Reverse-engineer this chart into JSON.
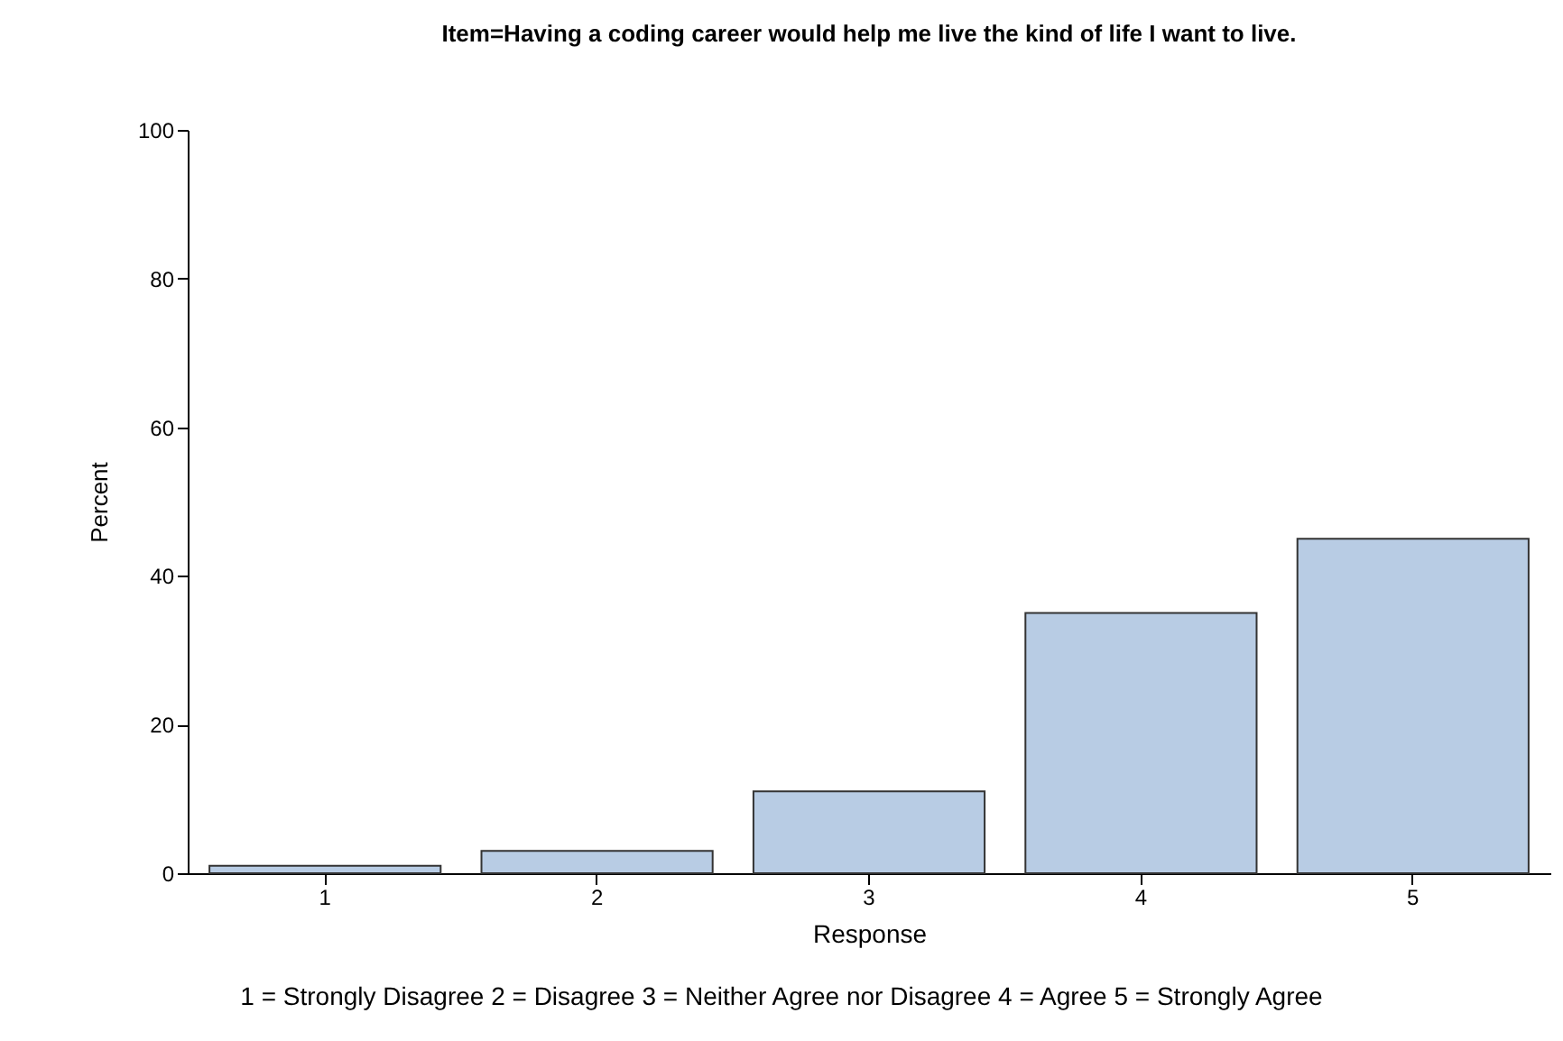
{
  "chart_data": {
    "type": "bar",
    "title": "Item=Having a coding career would help me live the kind of life I want to live.",
    "xlabel": "Response",
    "ylabel": "Percent",
    "categories": [
      "1",
      "2",
      "3",
      "4",
      "5"
    ],
    "values": [
      1,
      3,
      11,
      35,
      45
    ],
    "color": "#b8cce4",
    "ylim": [
      0,
      100
    ],
    "yticks": [
      0,
      20,
      40,
      60,
      80,
      100
    ],
    "grid": false,
    "annotations": [
      "1 = Strongly Disagree 2 = Disagree 3 = Neither Agree nor Disagree 4 = Agree 5 = Strongly Agree"
    ]
  }
}
